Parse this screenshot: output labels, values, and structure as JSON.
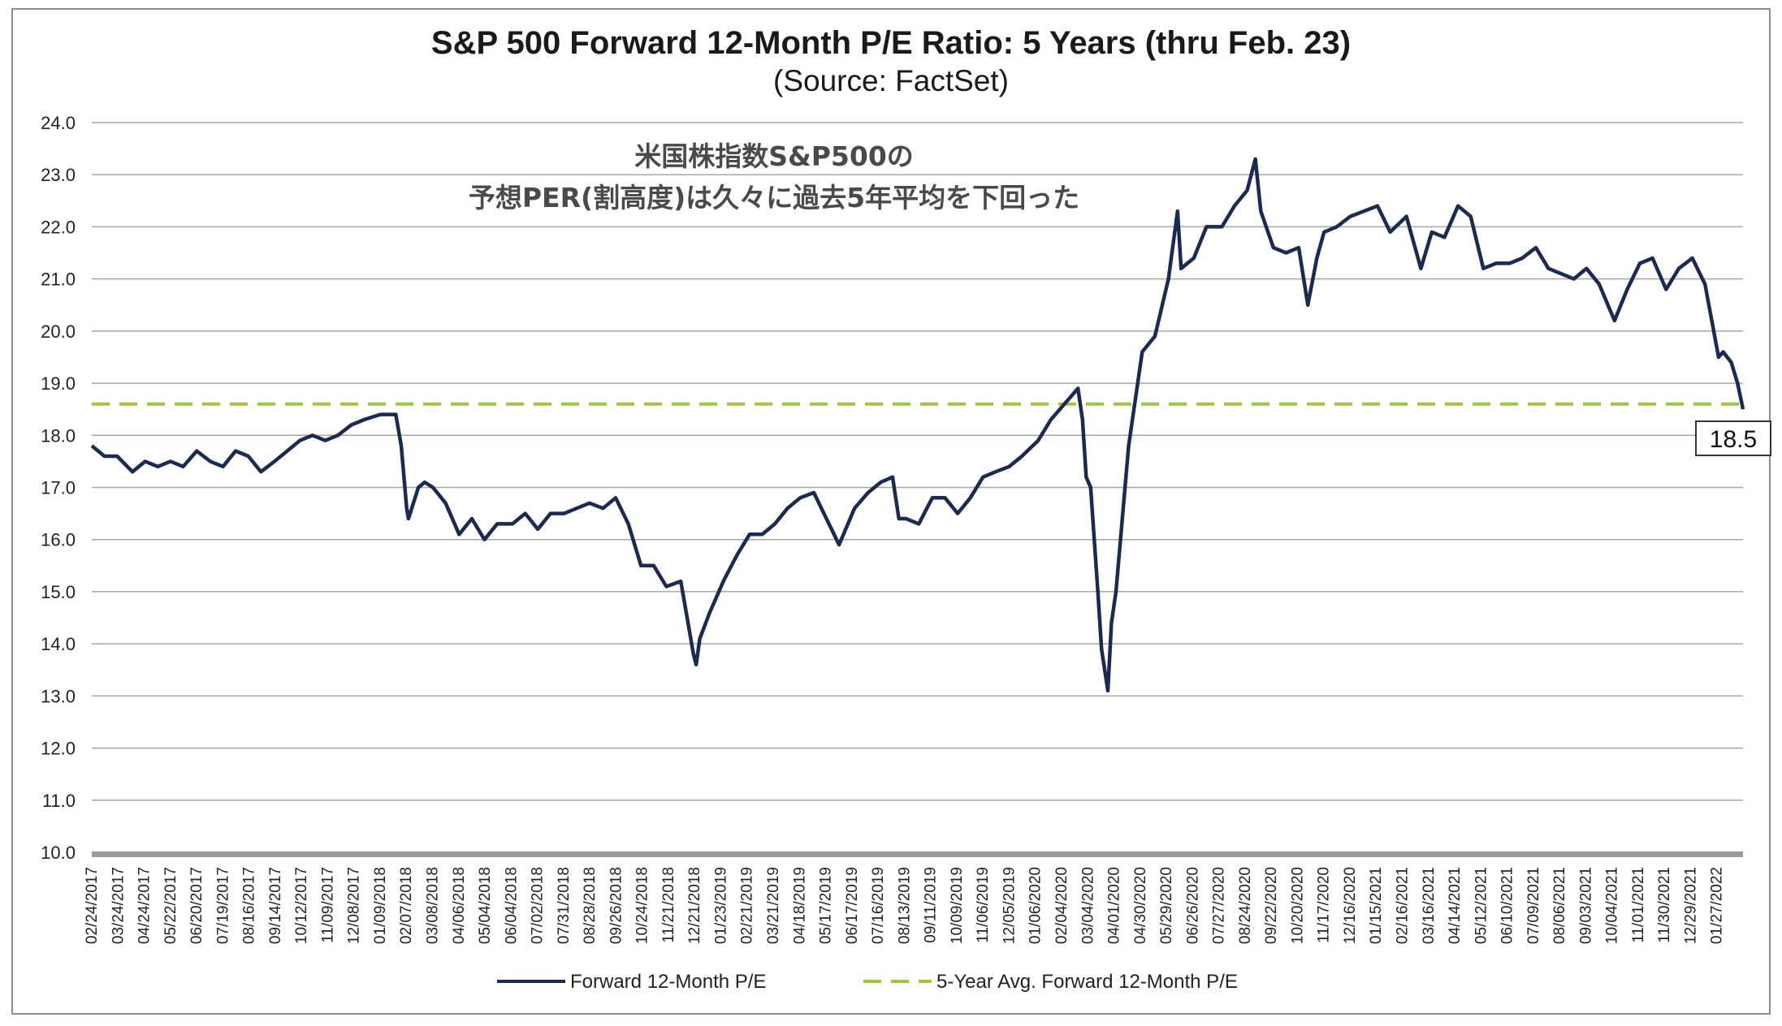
{
  "chart_data": {
    "type": "line",
    "title": "S&P 500 Forward 12-Month P/E Ratio: 5 Years (thru Feb. 23)",
    "subtitle": "(Source: FactSet)",
    "annotation_lines": [
      "米国株指数S&P500の",
      "予想PER(割高度)は久々に過去5年平均を下回った"
    ],
    "ylim": [
      10.0,
      24.0
    ],
    "yticks": [
      "10.0",
      "11.0",
      "12.0",
      "13.0",
      "14.0",
      "15.0",
      "16.0",
      "17.0",
      "18.0",
      "19.0",
      "20.0",
      "21.0",
      "22.0",
      "23.0",
      "24.0"
    ],
    "x_tick_labels": [
      "02/24/2017",
      "03/24/2017",
      "04/24/2017",
      "05/22/2017",
      "06/20/2017",
      "07/19/2017",
      "08/16/2017",
      "09/14/2017",
      "10/12/2017",
      "11/09/2017",
      "12/08/2017",
      "01/09/2018",
      "02/07/2018",
      "03/08/2018",
      "04/06/2018",
      "05/04/2018",
      "06/04/2018",
      "07/02/2018",
      "07/31/2018",
      "08/28/2018",
      "09/26/2018",
      "10/24/2018",
      "11/21/2018",
      "12/21/2018",
      "01/23/2019",
      "02/21/2019",
      "03/21/2019",
      "04/18/2019",
      "05/17/2019",
      "06/17/2019",
      "07/16/2019",
      "08/13/2019",
      "09/11/2019",
      "10/09/2019",
      "11/06/2019",
      "12/05/2019",
      "01/06/2020",
      "02/04/2020",
      "03/04/2020",
      "04/01/2020",
      "04/30/2020",
      "05/29/2020",
      "06/26/2020",
      "07/27/2020",
      "08/24/2020",
      "09/22/2020",
      "10/20/2020",
      "11/17/2020",
      "12/16/2020",
      "01/15/2021",
      "02/16/2021",
      "03/16/2021",
      "04/14/2021",
      "05/12/2021",
      "06/10/2021",
      "07/09/2021",
      "08/06/2021",
      "09/03/2021",
      "10/04/2021",
      "11/01/2021",
      "11/30/2021",
      "12/29/2021",
      "01/27/2022"
    ],
    "series": [
      {
        "name": "Forward 12-Month P/E",
        "color": "#1b2a4e",
        "points": [
          [
            "02/24/2017",
            17.8
          ],
          [
            "03/10/2017",
            17.6
          ],
          [
            "03/24/2017",
            17.6
          ],
          [
            "04/10/2017",
            17.3
          ],
          [
            "04/24/2017",
            17.5
          ],
          [
            "05/08/2017",
            17.4
          ],
          [
            "05/22/2017",
            17.5
          ],
          [
            "06/05/2017",
            17.4
          ],
          [
            "06/20/2017",
            17.7
          ],
          [
            "07/05/2017",
            17.5
          ],
          [
            "07/19/2017",
            17.4
          ],
          [
            "08/02/2017",
            17.7
          ],
          [
            "08/16/2017",
            17.6
          ],
          [
            "08/30/2017",
            17.3
          ],
          [
            "09/14/2017",
            17.5
          ],
          [
            "09/28/2017",
            17.7
          ],
          [
            "10/12/2017",
            17.9
          ],
          [
            "10/26/2017",
            18.0
          ],
          [
            "11/09/2017",
            17.9
          ],
          [
            "11/23/2017",
            18.0
          ],
          [
            "12/08/2017",
            18.2
          ],
          [
            "12/22/2017",
            18.3
          ],
          [
            "01/09/2018",
            18.4
          ],
          [
            "01/26/2018",
            18.4
          ],
          [
            "02/01/2018",
            17.8
          ],
          [
            "02/07/2018",
            16.6
          ],
          [
            "02/09/2018",
            16.4
          ],
          [
            "02/20/2018",
            17.0
          ],
          [
            "02/27/2018",
            17.1
          ],
          [
            "03/08/2018",
            17.0
          ],
          [
            "03/22/2018",
            16.7
          ],
          [
            "04/06/2018",
            16.1
          ],
          [
            "04/20/2018",
            16.4
          ],
          [
            "05/04/2018",
            16.0
          ],
          [
            "05/18/2018",
            16.3
          ],
          [
            "06/04/2018",
            16.3
          ],
          [
            "06/18/2018",
            16.5
          ],
          [
            "07/02/2018",
            16.2
          ],
          [
            "07/16/2018",
            16.5
          ],
          [
            "07/31/2018",
            16.5
          ],
          [
            "08/14/2018",
            16.6
          ],
          [
            "08/28/2018",
            16.7
          ],
          [
            "09/12/2018",
            16.6
          ],
          [
            "09/26/2018",
            16.8
          ],
          [
            "10/10/2018",
            16.3
          ],
          [
            "10/24/2018",
            15.5
          ],
          [
            "11/07/2018",
            15.5
          ],
          [
            "11/21/2018",
            15.1
          ],
          [
            "12/07/2018",
            15.2
          ],
          [
            "12/21/2018",
            13.8
          ],
          [
            "12/24/2018",
            13.6
          ],
          [
            "12/28/2018",
            14.1
          ],
          [
            "01/08/2019",
            14.6
          ],
          [
            "01/23/2019",
            15.2
          ],
          [
            "02/07/2019",
            15.7
          ],
          [
            "02/21/2019",
            16.1
          ],
          [
            "03/07/2019",
            16.1
          ],
          [
            "03/21/2019",
            16.3
          ],
          [
            "04/04/2019",
            16.6
          ],
          [
            "04/18/2019",
            16.8
          ],
          [
            "05/03/2019",
            16.9
          ],
          [
            "05/17/2019",
            16.4
          ],
          [
            "05/31/2019",
            15.9
          ],
          [
            "06/17/2019",
            16.6
          ],
          [
            "07/02/2019",
            16.9
          ],
          [
            "07/16/2019",
            17.1
          ],
          [
            "07/29/2019",
            17.2
          ],
          [
            "08/05/2019",
            16.4
          ],
          [
            "08/13/2019",
            16.4
          ],
          [
            "08/27/2019",
            16.3
          ],
          [
            "09/11/2019",
            16.8
          ],
          [
            "09/25/2019",
            16.8
          ],
          [
            "10/09/2019",
            16.5
          ],
          [
            "10/23/2019",
            16.8
          ],
          [
            "11/06/2019",
            17.2
          ],
          [
            "11/20/2019",
            17.3
          ],
          [
            "12/05/2019",
            17.4
          ],
          [
            "12/19/2019",
            17.6
          ],
          [
            "01/06/2020",
            17.9
          ],
          [
            "01/20/2020",
            18.3
          ],
          [
            "02/04/2020",
            18.6
          ],
          [
            "02/19/2020",
            18.9
          ],
          [
            "02/24/2020",
            18.3
          ],
          [
            "02/28/2020",
            17.2
          ],
          [
            "03/04/2020",
            17.0
          ],
          [
            "03/12/2020",
            15.0
          ],
          [
            "03/16/2020",
            13.9
          ],
          [
            "03/23/2020",
            13.1
          ],
          [
            "03/27/2020",
            14.4
          ],
          [
            "04/01/2020",
            15.0
          ],
          [
            "04/09/2020",
            16.6
          ],
          [
            "04/15/2020",
            17.8
          ],
          [
            "04/30/2020",
            19.6
          ],
          [
            "05/14/2020",
            19.9
          ],
          [
            "05/29/2020",
            21.0
          ],
          [
            "06/08/2020",
            22.3
          ],
          [
            "06/12/2020",
            21.2
          ],
          [
            "06/26/2020",
            21.4
          ],
          [
            "07/10/2020",
            22.0
          ],
          [
            "07/27/2020",
            22.0
          ],
          [
            "08/10/2020",
            22.4
          ],
          [
            "08/24/2020",
            22.7
          ],
          [
            "09/02/2020",
            23.3
          ],
          [
            "09/08/2020",
            22.3
          ],
          [
            "09/22/2020",
            21.6
          ],
          [
            "10/06/2020",
            21.5
          ],
          [
            "10/20/2020",
            21.6
          ],
          [
            "10/30/2020",
            20.5
          ],
          [
            "11/09/2020",
            21.4
          ],
          [
            "11/17/2020",
            21.9
          ],
          [
            "12/01/2020",
            22.0
          ],
          [
            "12/16/2020",
            22.2
          ],
          [
            "12/31/2020",
            22.3
          ],
          [
            "01/15/2021",
            22.4
          ],
          [
            "01/29/2021",
            21.9
          ],
          [
            "02/16/2021",
            22.2
          ],
          [
            "03/04/2021",
            21.2
          ],
          [
            "03/16/2021",
            21.9
          ],
          [
            "03/30/2021",
            21.8
          ],
          [
            "04/14/2021",
            22.4
          ],
          [
            "04/28/2021",
            22.2
          ],
          [
            "05/12/2021",
            21.2
          ],
          [
            "05/26/2021",
            21.3
          ],
          [
            "06/10/2021",
            21.3
          ],
          [
            "06/24/2021",
            21.4
          ],
          [
            "07/09/2021",
            21.6
          ],
          [
            "07/23/2021",
            21.2
          ],
          [
            "08/06/2021",
            21.1
          ],
          [
            "08/20/2021",
            21.0
          ],
          [
            "09/03/2021",
            21.2
          ],
          [
            "09/17/2021",
            20.9
          ],
          [
            "10/04/2021",
            20.2
          ],
          [
            "10/18/2021",
            20.8
          ],
          [
            "11/01/2021",
            21.3
          ],
          [
            "11/15/2021",
            21.4
          ],
          [
            "11/30/2021",
            20.8
          ],
          [
            "12/14/2021",
            21.2
          ],
          [
            "12/29/2021",
            21.4
          ],
          [
            "01/12/2022",
            20.9
          ],
          [
            "01/27/2022",
            19.5
          ],
          [
            "02/01/2022",
            19.6
          ],
          [
            "02/10/2022",
            19.4
          ],
          [
            "02/17/2022",
            19.0
          ],
          [
            "02/23/2022",
            18.5
          ]
        ]
      },
      {
        "name": "5-Year Avg. Forward 12-Month P/E",
        "color": "#9dc63f",
        "constant": 18.6
      }
    ],
    "end_label": "18.5",
    "grid": "horizontal",
    "legend_position": "bottom-center"
  }
}
